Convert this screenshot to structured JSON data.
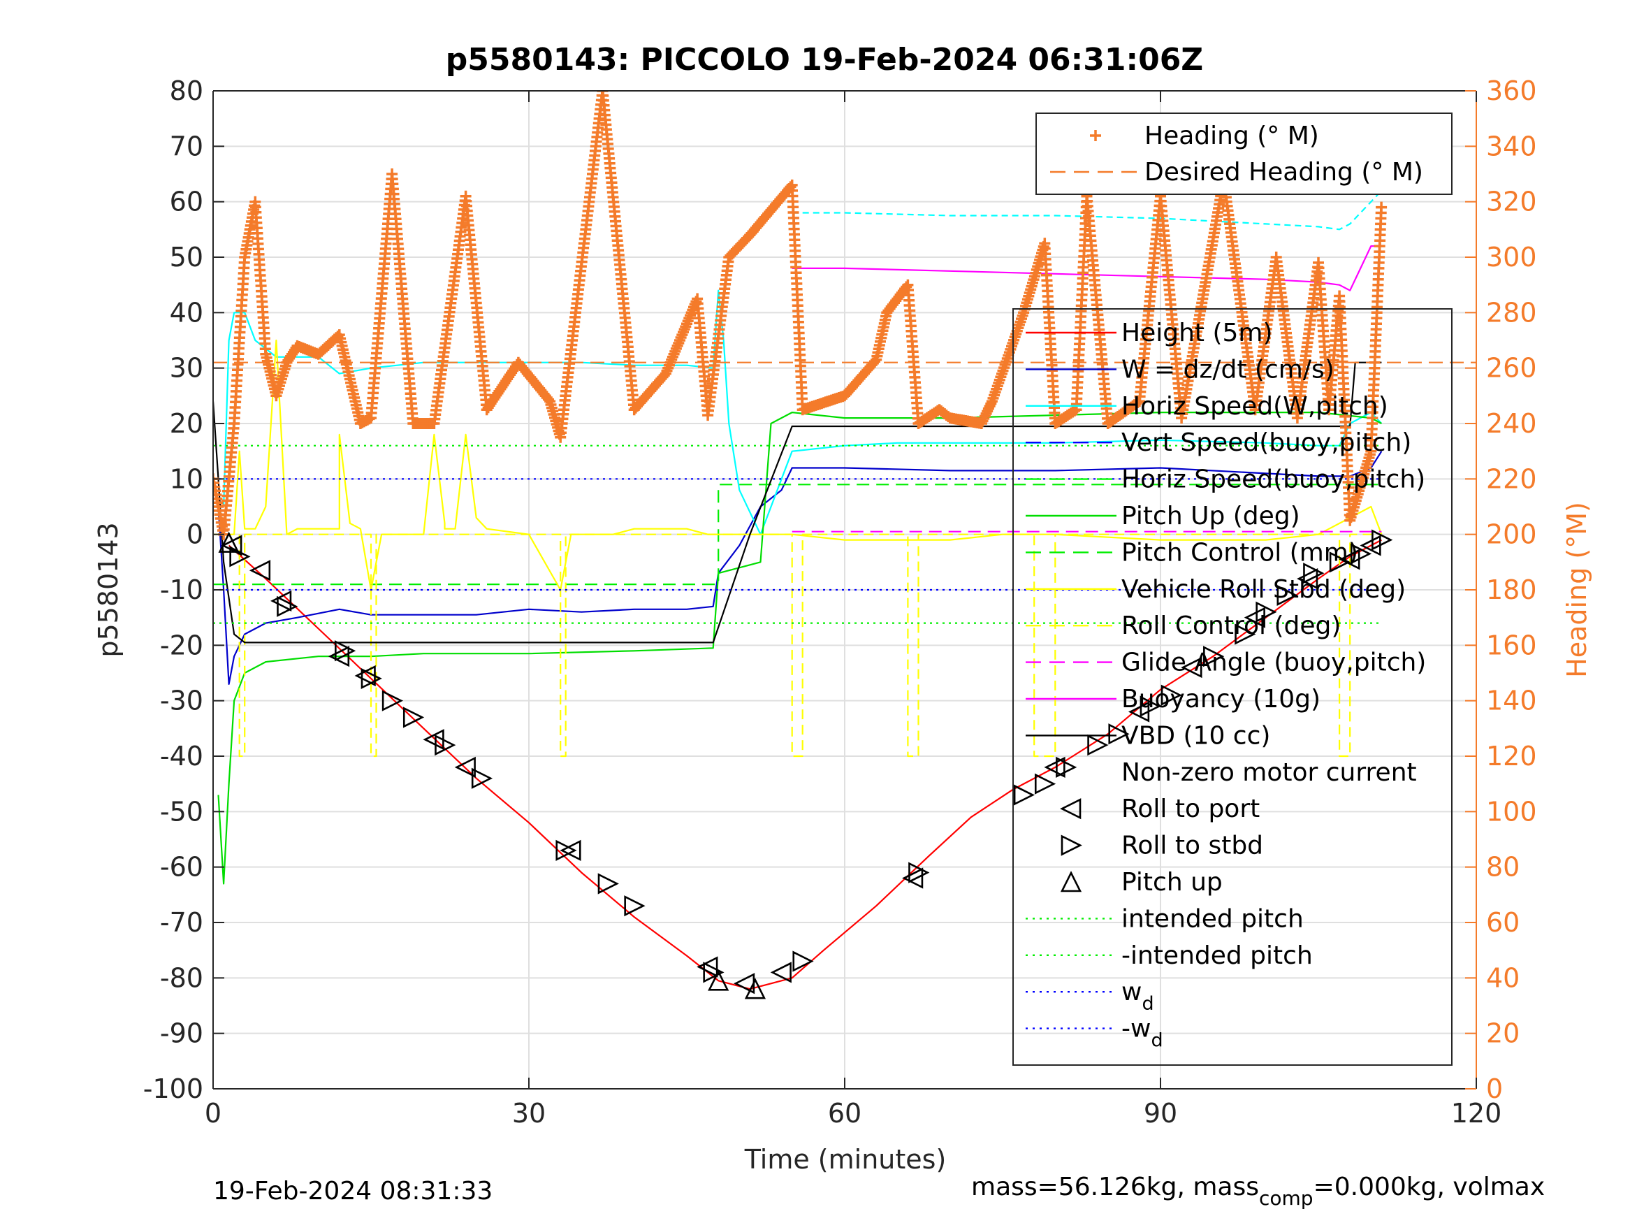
{
  "chart_data": {
    "type": "line",
    "title": "p5580143: PICCOLO 19-Feb-2024 06:31:06Z",
    "xlabel": "Time (minutes)",
    "ylabel": "p5580143",
    "y2label": "Heading (°M)",
    "xlim": [
      0,
      120
    ],
    "ylim": [
      -100,
      80
    ],
    "y2lim": [
      0,
      360
    ],
    "xticks": [
      "0",
      "30",
      "60",
      "90",
      "120"
    ],
    "yticks": [
      "80",
      "70",
      "60",
      "50",
      "40",
      "30",
      "20",
      "10",
      "0",
      "-10",
      "-20",
      "-30",
      "-40",
      "-50",
      "-60",
      "-70",
      "-80",
      "-90",
      "-100"
    ],
    "y2ticks": [
      "360",
      "340",
      "320",
      "300",
      "280",
      "260",
      "240",
      "220",
      "200",
      "180",
      "160",
      "140",
      "120",
      "100",
      "80",
      "60",
      "40",
      "20",
      "0"
    ],
    "grid": true,
    "footer_left": "19-Feb-2024 08:31:33",
    "footer_right_parts": [
      "mass=56.126kg, mass",
      "comp",
      "=0.000kg, volmax"
    ],
    "legend_heading": [
      {
        "label": "Heading (° M)",
        "color": "#f47b2a",
        "style": "plus"
      },
      {
        "label": "Desired Heading (° M)",
        "color": "#f47b2a",
        "style": "dash"
      }
    ],
    "legend_main": [
      {
        "label": "Height (5m)",
        "color": "#ff0000",
        "style": "solid"
      },
      {
        "label": "W = dz/dt (cm/s)",
        "color": "#0000cc",
        "style": "solid"
      },
      {
        "label": "Horiz Speed(W,pitch)",
        "color": "#00ffff",
        "style": "solid"
      },
      {
        "label": "Vert Speed(buoy,pitch)",
        "color": "#0000ff",
        "style": "dash"
      },
      {
        "label": "Horiz Speed(buoy,pitch)",
        "color": "#00ff00",
        "style": "dash"
      },
      {
        "label": "Pitch Up (deg)",
        "color": "#00dd00",
        "style": "solid"
      },
      {
        "label": "Pitch Control (mm)",
        "color": "#00ee00",
        "style": "dash"
      },
      {
        "label": "Vehicle Roll Stbd (deg)",
        "color": "#ffff00",
        "style": "solid"
      },
      {
        "label": "Roll Control (deg)",
        "color": "#ffff00",
        "style": "dash"
      },
      {
        "label": "Glide Angle (buoy,pitch)",
        "color": "#ff00ff",
        "style": "dash"
      },
      {
        "label": "Buoyancy (10g)",
        "color": "#ff00ff",
        "style": "solid"
      },
      {
        "label": "VBD (10 cc)",
        "color": "#000000",
        "style": "solid"
      },
      {
        "label": "Non-zero motor current",
        "color": "#000000",
        "style": "none"
      },
      {
        "label": "Roll to port",
        "color": "#000000",
        "style": "tri-left"
      },
      {
        "label": "Roll to stbd",
        "color": "#000000",
        "style": "tri-right"
      },
      {
        "label": "Pitch up",
        "color": "#000000",
        "style": "tri-up"
      },
      {
        "label": "intended pitch",
        "color": "#00ee00",
        "style": "dot"
      },
      {
        "label": "-intended pitch",
        "color": "#00ee00",
        "style": "dot"
      },
      {
        "label": "w",
        "sub": "d",
        "color": "#0000ff",
        "style": "dot"
      },
      {
        "label": "-w",
        "sub": "d",
        "color": "#0000ff",
        "style": "dot"
      }
    ],
    "series": [
      {
        "name": "Height (5m)",
        "color": "#ff0000",
        "axis": "left",
        "x": [
          1.5,
          5,
          10,
          15,
          20,
          25,
          30,
          35,
          40,
          45,
          48,
          51,
          53,
          55,
          58,
          63,
          68,
          72,
          76,
          80,
          85,
          90,
          95,
          100,
          105,
          108,
          111
        ],
        "y": [
          -2,
          -8,
          -17,
          -26,
          -35,
          -44,
          -52,
          -61,
          -69,
          -76,
          -80.5,
          -82,
          -81,
          -80,
          -75,
          -67,
          -58,
          -51,
          -46,
          -42,
          -36,
          -28,
          -22,
          -15,
          -8,
          -4,
          -1
        ]
      },
      {
        "name": "W = dz/dt (cm/s)",
        "color": "#0000cc",
        "axis": "left",
        "x": [
          0.5,
          1,
          1.5,
          2,
          3,
          5,
          8,
          12,
          15,
          20,
          25,
          30,
          35,
          40,
          45,
          47.5,
          48,
          50,
          52,
          54,
          55,
          60,
          70,
          80,
          90,
          100,
          105,
          108,
          110,
          111
        ],
        "y": [
          5,
          -10,
          -27,
          -22,
          -18,
          -16,
          -15,
          -13.5,
          -14.5,
          -14.5,
          -14.5,
          -13.5,
          -14,
          -13.5,
          -13.5,
          -13,
          -7,
          -2,
          5,
          8,
          12,
          12,
          11.5,
          11.5,
          12,
          11,
          10.5,
          10.5,
          12,
          15
        ]
      },
      {
        "name": "Horiz Speed(W,pitch)",
        "color": "#00ffff",
        "axis": "left",
        "x": [
          1,
          1.5,
          2,
          3,
          4,
          6,
          10,
          12,
          15,
          20,
          25,
          30,
          35,
          40,
          45,
          47.5,
          48,
          48.5,
          49,
          50,
          52,
          54,
          55,
          60,
          65,
          70,
          80,
          90,
          100,
          105,
          107,
          108,
          110,
          111
        ],
        "y": [
          5,
          35,
          40,
          40,
          35,
          32,
          32,
          29,
          30,
          31,
          31,
          31,
          31,
          30.5,
          30.5,
          30,
          44,
          35,
          20,
          8,
          0,
          10,
          15,
          16,
          16.5,
          16.5,
          16.5,
          17,
          16.5,
          16,
          16,
          20,
          22,
          20
        ]
      },
      {
        "name": "Horiz Speed(W,pitch) high",
        "color": "#00ffff",
        "axis": "left",
        "dash": "9 6",
        "x": [
          55,
          60,
          70,
          80,
          90,
          100,
          105,
          107,
          108,
          110,
          111
        ],
        "y": [
          58,
          58,
          57.5,
          57.5,
          57,
          56,
          55.5,
          55,
          56,
          60,
          62
        ]
      },
      {
        "name": "Pitch Up (deg)",
        "color": "#00dd00",
        "axis": "left",
        "x": [
          0.5,
          1,
          1.5,
          2,
          3,
          5,
          10,
          15,
          20,
          30,
          40,
          47.5,
          48,
          50,
          52,
          53,
          55,
          60,
          70,
          80,
          90,
          100,
          105,
          110,
          111
        ],
        "y": [
          -47,
          -63,
          -45,
          -30,
          -25,
          -23,
          -22,
          -22,
          -21.5,
          -21.5,
          -21,
          -20.5,
          -7,
          -6,
          -5,
          20,
          22,
          21,
          21,
          21.5,
          22,
          22,
          22,
          21,
          20
        ]
      },
      {
        "name": "Pitch Control (mm)",
        "color": "#00ee00",
        "axis": "left",
        "dash": "18 10",
        "x": [
          0,
          6,
          48,
          48,
          53,
          53,
          111
        ],
        "y": [
          -9,
          -9,
          -9,
          9,
          9,
          9,
          9
        ]
      },
      {
        "name": "Vehicle Roll Stbd (deg)",
        "color": "#ffff00",
        "axis": "left",
        "x": [
          0,
          2,
          2.5,
          3,
          4,
          5,
          6,
          7,
          8,
          10,
          12,
          12,
          13,
          14,
          15,
          16,
          18,
          20,
          21,
          22,
          22,
          23,
          24,
          25,
          26,
          30,
          33,
          34,
          35,
          38,
          40,
          45,
          47,
          48,
          50,
          55,
          60,
          70,
          75,
          80,
          90,
          100,
          105,
          110,
          111
        ],
        "y": [
          0,
          0,
          15,
          1,
          1,
          5,
          35,
          0,
          1,
          1,
          1,
          18,
          2,
          1,
          -10,
          0,
          0,
          0,
          18,
          2,
          1,
          1,
          18,
          3,
          1,
          0,
          -10,
          0,
          0,
          0,
          1,
          1,
          0,
          0,
          0,
          0,
          -1,
          -1,
          0,
          0,
          -1,
          -1,
          0,
          5,
          0
        ]
      },
      {
        "name": "Roll Control (deg)",
        "color": "#ffff00",
        "axis": "left",
        "dash": "14 8",
        "x": [
          2.5,
          2.5,
          3,
          3,
          15,
          15,
          15.5,
          15.5,
          33,
          33,
          33.5,
          33.5,
          55,
          55,
          56,
          56,
          66,
          66,
          67,
          67,
          78,
          78,
          80,
          80,
          107,
          107,
          108,
          108,
          111
        ],
        "y": [
          0,
          -40,
          -40,
          0,
          0,
          -40,
          -40,
          0,
          0,
          -40,
          -40,
          0,
          0,
          -40,
          -40,
          0,
          0,
          -40,
          -40,
          0,
          0,
          -40,
          -40,
          0,
          0,
          -40,
          -40,
          0,
          0
        ]
      },
      {
        "name": "Glide Angle (buoy,pitch)",
        "color": "#ff00ff",
        "axis": "left",
        "dash": "18 10",
        "x": [
          55,
          111
        ],
        "y": [
          0.5,
          0.5
        ]
      },
      {
        "name": "Buoyancy (10g)",
        "color": "#ff00ff",
        "axis": "left",
        "x": [
          55,
          60,
          70,
          80,
          90,
          100,
          105,
          107,
          108,
          109,
          110,
          111
        ],
        "y": [
          48,
          48,
          47.5,
          47,
          46.5,
          46,
          45.5,
          45,
          44,
          48,
          52,
          52
        ]
      },
      {
        "name": "VBD (10 cc)",
        "color": "#000000",
        "axis": "left",
        "x": [
          0,
          0.5,
          1,
          2,
          3,
          47.5,
          51,
          55,
          108,
          108.5,
          111
        ],
        "y": [
          24,
          10,
          -5,
          -18,
          -19.5,
          -19.5,
          0,
          19.5,
          19.5,
          31,
          31
        ]
      },
      {
        "name": "intended pitch",
        "color": "#00ee00",
        "axis": "left",
        "dash": "3 6",
        "x": [
          0,
          111
        ],
        "y": [
          16,
          16
        ]
      },
      {
        "name": "-intended pitch",
        "color": "#00ee00",
        "axis": "left",
        "dash": "3 6",
        "x": [
          0,
          111
        ],
        "y": [
          -16,
          -16
        ]
      },
      {
        "name": "w_d",
        "color": "#0000ff",
        "axis": "left",
        "dash": "3 6",
        "x": [
          0,
          111
        ],
        "y": [
          10,
          10
        ]
      },
      {
        "name": "-w_d",
        "color": "#0000ff",
        "axis": "left",
        "dash": "3 6",
        "x": [
          0,
          111
        ],
        "y": [
          -10,
          -10
        ]
      },
      {
        "name": "Desired Heading (° M)",
        "color": "#f47b2a",
        "axis": "right",
        "dash": "20 10",
        "x": [
          0,
          120
        ],
        "y": [
          262,
          262
        ]
      }
    ],
    "heading_keypoints": [
      [
        0,
        220
      ],
      [
        1,
        200
      ],
      [
        2,
        240
      ],
      [
        3,
        300
      ],
      [
        4,
        320
      ],
      [
        5,
        265
      ],
      [
        6,
        250
      ],
      [
        7,
        262
      ],
      [
        8,
        268
      ],
      [
        10,
        265
      ],
      [
        12,
        272
      ],
      [
        14,
        240
      ],
      [
        15,
        242
      ],
      [
        17,
        330
      ],
      [
        19,
        240
      ],
      [
        21,
        240
      ],
      [
        24,
        322
      ],
      [
        26,
        245
      ],
      [
        29,
        262
      ],
      [
        32,
        248
      ],
      [
        33,
        235
      ],
      [
        37,
        360
      ],
      [
        40,
        245
      ],
      [
        43,
        258
      ],
      [
        46,
        285
      ],
      [
        47,
        243
      ],
      [
        49,
        300
      ],
      [
        51,
        308
      ],
      [
        55,
        326
      ],
      [
        56,
        245
      ],
      [
        60,
        250
      ],
      [
        63,
        263
      ],
      [
        64,
        280
      ],
      [
        66,
        290
      ],
      [
        67,
        240
      ],
      [
        69,
        245
      ],
      [
        70,
        242
      ],
      [
        73,
        240
      ],
      [
        74,
        248
      ],
      [
        77,
        280
      ],
      [
        79,
        305
      ],
      [
        80,
        240
      ],
      [
        82,
        245
      ],
      [
        83,
        322
      ],
      [
        85,
        240
      ],
      [
        88,
        248
      ],
      [
        90,
        322
      ],
      [
        92,
        242
      ],
      [
        96,
        328
      ],
      [
        99,
        245
      ],
      [
        101,
        300
      ],
      [
        103,
        242
      ],
      [
        105,
        298
      ],
      [
        106,
        245
      ],
      [
        107,
        286
      ],
      [
        108,
        205
      ],
      [
        110,
        230
      ],
      [
        111,
        320
      ]
    ],
    "markers_left": [
      [
        1.8,
        -2
      ],
      [
        4.5,
        -6.5
      ],
      [
        6.5,
        -12
      ],
      [
        12,
        -22
      ],
      [
        14.5,
        -25.5
      ],
      [
        21,
        -37
      ],
      [
        24,
        -42
      ],
      [
        34,
        -57
      ],
      [
        47,
        -78
      ],
      [
        50.5,
        -81
      ],
      [
        54,
        -79
      ],
      [
        66.5,
        -62
      ],
      [
        80,
        -42
      ],
      [
        88,
        -32
      ],
      [
        93,
        -24
      ],
      [
        99,
        -15
      ],
      [
        104,
        -8
      ],
      [
        108,
        -4.5
      ],
      [
        110,
        -2
      ]
    ],
    "markers_right": [
      [
        2.5,
        -4
      ],
      [
        7,
        -13
      ],
      [
        12.5,
        -21
      ],
      [
        15,
        -26
      ],
      [
        17,
        -30
      ],
      [
        19,
        -33
      ],
      [
        22,
        -38
      ],
      [
        25.5,
        -44
      ],
      [
        33.5,
        -57
      ],
      [
        37.5,
        -63
      ],
      [
        40,
        -67
      ],
      [
        47.5,
        -79
      ],
      [
        56,
        -77
      ],
      [
        67,
        -61
      ],
      [
        77,
        -47
      ],
      [
        79,
        -45
      ],
      [
        81,
        -42
      ],
      [
        84,
        -38
      ],
      [
        86,
        -36
      ],
      [
        89,
        -31
      ],
      [
        91,
        -29
      ],
      [
        95,
        -22
      ],
      [
        98,
        -18
      ],
      [
        100,
        -14
      ],
      [
        102,
        -11
      ],
      [
        104.5,
        -7
      ],
      [
        107,
        -5
      ],
      [
        109,
        -3.5
      ],
      [
        111,
        -1
      ]
    ],
    "markers_up": [
      [
        1.5,
        -1.5
      ],
      [
        48,
        -80.5
      ],
      [
        51.5,
        -82
      ]
    ]
  }
}
